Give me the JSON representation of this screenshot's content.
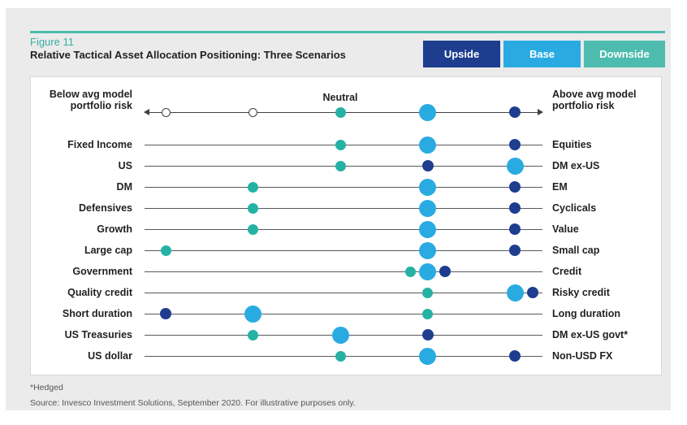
{
  "page": {
    "figure_label": "Figure 11",
    "title": "Relative Tactical Asset Allocation Positioning: Three Scenarios",
    "footnote": "*Hedged",
    "source": "Source: Invesco Investment Solutions, September 2020. For illustrative purposes only."
  },
  "legend": [
    {
      "label": "Upside",
      "color": "#1e3d8f"
    },
    {
      "label": "Base",
      "color": "#29abe2"
    },
    {
      "label": "Downside",
      "color": "#4dbcae"
    }
  ],
  "colors": {
    "upside": "#1e3d8f",
    "base": "#29abe2",
    "downside": "#25b2a4",
    "accent_rule": "#4cbcad",
    "figure_label_text": "#38b1a7",
    "panel_bg": "#ebebeb",
    "card_border": "#d9d9d9",
    "axis_line": "#414042",
    "row_line": "#58595b",
    "text": "#231f20",
    "footer_text": "#55565a"
  },
  "chart_data": {
    "type": "scatter",
    "description": "Dot-plot of relative tactical asset allocation positioning under three scenarios. Horizontal scale runs from -2 (below average / left label) through 0 (Neutral) to +2 (above average / right label); each row shows one dot per scenario.",
    "legend_series": [
      "Upside",
      "Base",
      "Downside"
    ],
    "axis": {
      "neutral_label": "Neutral",
      "left_title_line1": "Below avg model",
      "left_title_line2": "portfolio risk",
      "right_title_line1": "Above avg model",
      "right_title_line2": "portfolio risk",
      "domain": [
        -2.25,
        2.3
      ],
      "reference_open_markers": [
        -2,
        -1
      ],
      "scenario_values": {
        "downside": 0,
        "base": 1,
        "upside": 2
      }
    },
    "rows": [
      {
        "left": "Fixed Income",
        "right": "Equities",
        "downside": 0,
        "base": 1,
        "upside": 2
      },
      {
        "left": "US",
        "right": "DM ex-US",
        "downside": 0,
        "base": 2,
        "upside": 1
      },
      {
        "left": "DM",
        "right": "EM",
        "downside": -1,
        "base": 1,
        "upside": 2
      },
      {
        "left": "Defensives",
        "right": "Cyclicals",
        "downside": -1,
        "base": 1,
        "upside": 2
      },
      {
        "left": "Growth",
        "right": "Value",
        "downside": -1,
        "base": 1,
        "upside": 2
      },
      {
        "left": "Large cap",
        "right": "Small cap",
        "downside": -2,
        "base": 1,
        "upside": 2
      },
      {
        "left": "Government",
        "right": "Credit",
        "downside": 0.8,
        "base": 1,
        "upside": 1.2
      },
      {
        "left": "Quality credit",
        "right": "Risky credit",
        "downside": 1,
        "base": 2,
        "upside": 2.2
      },
      {
        "left": "Short duration",
        "right": "Long duration",
        "downside": 1,
        "base": -1,
        "upside": -2
      },
      {
        "left": "US Treasuries",
        "right": "DM ex-US govt*",
        "downside": -1,
        "base": 0,
        "upside": 1
      },
      {
        "left": "US dollar",
        "right": "Non-USD FX",
        "downside": 0,
        "base": 1,
        "upside": 2
      }
    ]
  }
}
